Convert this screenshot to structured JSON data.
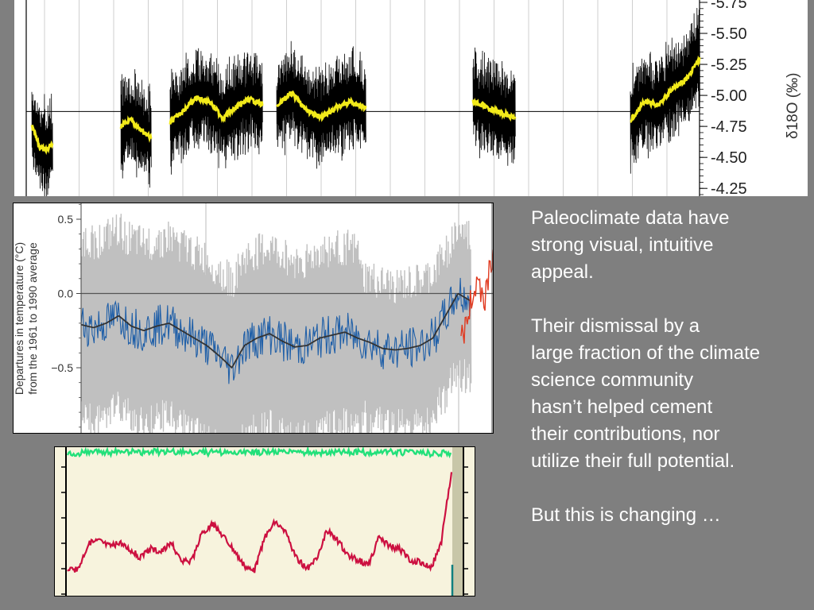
{
  "colors": {
    "background": "#7f7f7f",
    "d18o_raw": "#000000",
    "d18o_smooth": "#f2ea1a",
    "recon_band": "#c0c0c0",
    "recon_series": "#1f5fa8",
    "recon_smooth": "#333333",
    "instrumental": "#e03a20",
    "green_series": "#22e07a",
    "red_series": "#cc1040",
    "teal_marker": "#108080"
  },
  "text": {
    "paragraphs": [
      "Paleoclimate data have\nstrong visual, intuitive\nappeal.",
      "Their dismissal by a\nlarge fraction of the climate\nscience community\nhasn’t helped cement\ntheir contributions, nor\nutilize their full potential.",
      "But this is changing …"
    ]
  },
  "chart_data": [
    {
      "type": "line",
      "ylabel": "δ18O (‰)",
      "ytick_labels": [
        "-5.75",
        "-5.50",
        "-5.25",
        "-5.00",
        "-4.75",
        "-4.50",
        "-4.25"
      ],
      "ylim": [
        -4.2,
        -5.75
      ],
      "y_inverted": true,
      "reference_line": -4.87,
      "grid": true,
      "series": [
        {
          "segment": 1,
          "values": [
            -4.75,
            -4.6,
            -4.55,
            -4.62
          ]
        },
        {
          "segment": 2,
          "values": [
            -4.75,
            -4.8,
            -4.72,
            -4.65
          ]
        },
        {
          "segment": 3,
          "values": [
            -4.78,
            -4.88,
            -4.98,
            -4.95,
            -4.82,
            -4.9,
            -4.97,
            -4.93
          ]
        },
        {
          "segment": 4,
          "values": [
            -4.92,
            -5.02,
            -4.88,
            -4.82,
            -4.9,
            -4.95,
            -4.9
          ]
        },
        {
          "segment": 5,
          "values": [
            -4.95,
            -4.88,
            -4.82
          ]
        },
        {
          "segment": 6,
          "values": [
            -4.8,
            -4.95,
            -4.92,
            -5.05,
            -5.12,
            -5.3
          ]
        }
      ]
    },
    {
      "type": "line",
      "ylabel": "Departures in temperature (°C)\nfrom the 1961 to 1990 average",
      "ytick_labels": [
        "0.5",
        "0.0",
        "−0.5"
      ],
      "ylim": [
        -0.9,
        0.6
      ],
      "reference_line": 0.0,
      "grid": true,
      "series": [
        {
          "name_hidden": true,
          "values": [
            -0.21,
            -0.23,
            -0.2,
            -0.15,
            -0.22,
            -0.25,
            -0.22,
            -0.2,
            -0.25,
            -0.3,
            -0.35,
            -0.42,
            -0.5,
            -0.35,
            -0.3,
            -0.27,
            -0.32,
            -0.36,
            -0.35,
            -0.3,
            -0.28,
            -0.26,
            -0.3,
            -0.33,
            -0.37,
            -0.38,
            -0.37,
            -0.35,
            -0.3,
            -0.15,
            0.0,
            -0.05
          ]
        }
      ]
    },
    {
      "type": "line",
      "ytick_count": 6,
      "series": [
        {
          "name_hidden": true,
          "values": [
            0.85,
            0.95,
            0.96,
            0.94,
            0.97,
            0.95,
            0.97,
            0.96,
            0.97,
            0.96,
            0.94,
            0.95,
            0.93,
            0.96,
            0.95,
            0.97,
            0.94,
            0.96,
            0.95,
            0.97,
            0.96,
            0.95,
            0.94,
            0.97,
            0.95,
            0.93,
            0.9,
            0.92
          ]
        },
        {
          "name_hidden": true,
          "values": [
            0.1,
            0.12,
            0.35,
            0.38,
            0.33,
            0.35,
            0.3,
            0.22,
            0.3,
            0.28,
            0.35,
            0.18,
            0.2,
            0.45,
            0.52,
            0.42,
            0.3,
            0.15,
            0.1,
            0.4,
            0.55,
            0.45,
            0.22,
            0.12,
            0.2,
            0.47,
            0.38,
            0.25,
            0.2,
            0.15,
            0.4,
            0.32,
            0.3,
            0.2,
            0.18,
            0.12,
            0.35,
            1.0
          ]
        }
      ]
    }
  ]
}
